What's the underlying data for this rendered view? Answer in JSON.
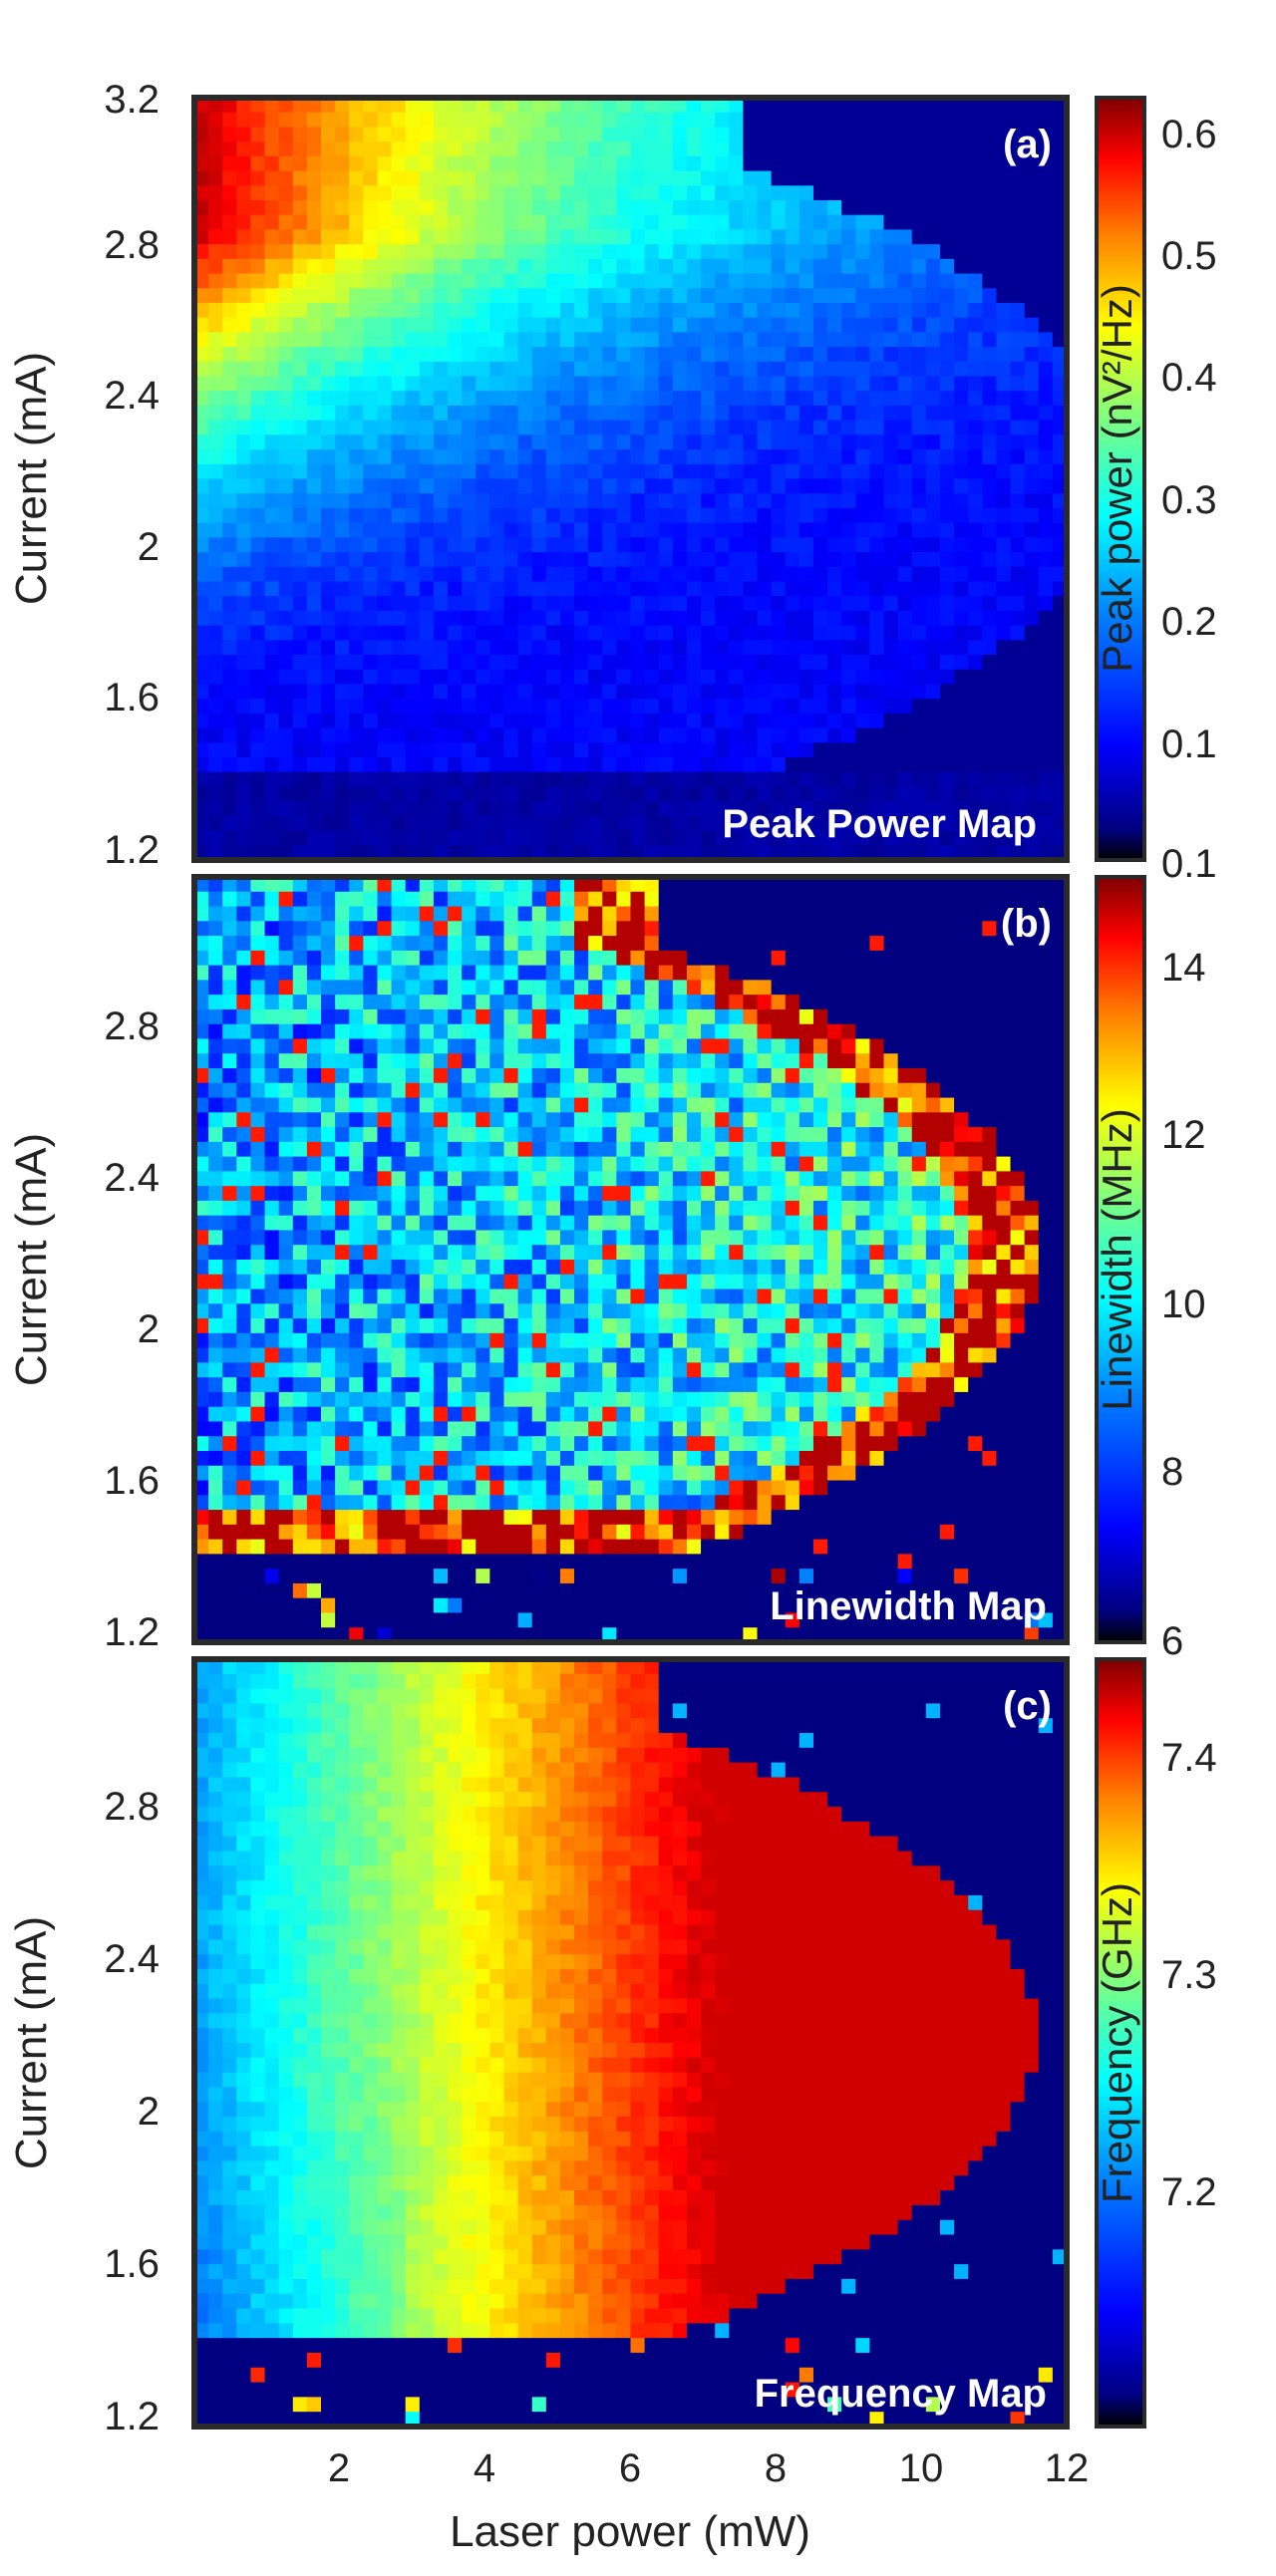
{
  "colors": {
    "background": "#000000",
    "frame": "#2a2a2a",
    "colormap": [
      "#00007f",
      "#0000ff",
      "#007fff",
      "#00ffff",
      "#7fff7f",
      "#ffff00",
      "#ff7f00",
      "#ff0000",
      "#7f0000"
    ]
  },
  "chart_data": [
    {
      "type": "heatmap",
      "panel": "(a)",
      "title": "Peak Power Map",
      "ylabel": "Current (mA)",
      "xlim": [
        0,
        12
      ],
      "ylim": [
        1.2,
        3.2
      ],
      "yticks": [
        "1.2",
        "1.6",
        "2",
        "2.4",
        "2.8",
        "3.2"
      ],
      "xticks": [],
      "colorbar": {
        "label": "Peak power (nV²/Hz)",
        "range": [
          -0.02,
          0.63
        ],
        "ticks": [
          "0.1",
          "0.1",
          "0.2",
          "0.3",
          "0.4",
          "0.5",
          "0.6"
        ]
      },
      "peak": {
        "x": 0.3,
        "y": 2.85,
        "value": 0.6
      }
    },
    {
      "type": "heatmap",
      "panel": "(b)",
      "title": "Linewidth Map",
      "ylabel": "Current (mA)",
      "xlim": [
        0,
        12
      ],
      "ylim": [
        1.2,
        3.2
      ],
      "yticks": [
        "1.2",
        "1.6",
        "2",
        "2.4",
        "2.8"
      ],
      "xticks": [],
      "colorbar": {
        "label": "Linewidth (MHz)",
        "range": [
          6,
          15
        ],
        "ticks": [
          "6",
          "8",
          "10",
          "12",
          "14"
        ]
      }
    },
    {
      "type": "heatmap",
      "panel": "(c)",
      "title": "Frequency Map",
      "xlabel": "Laser power (mW)",
      "ylabel": "Current (mA)",
      "xlim": [
        0,
        12
      ],
      "ylim": [
        1.2,
        3.2
      ],
      "yticks": [
        "1.2",
        "1.6",
        "2",
        "2.4",
        "2.8"
      ],
      "xticks": [
        "2",
        "4",
        "6",
        "8",
        "10",
        "12"
      ],
      "colorbar": {
        "label": "Frequency (GHz)",
        "range": [
          7.1,
          7.45
        ],
        "ticks": [
          "7.2",
          "7.3",
          "7.4"
        ]
      }
    }
  ]
}
